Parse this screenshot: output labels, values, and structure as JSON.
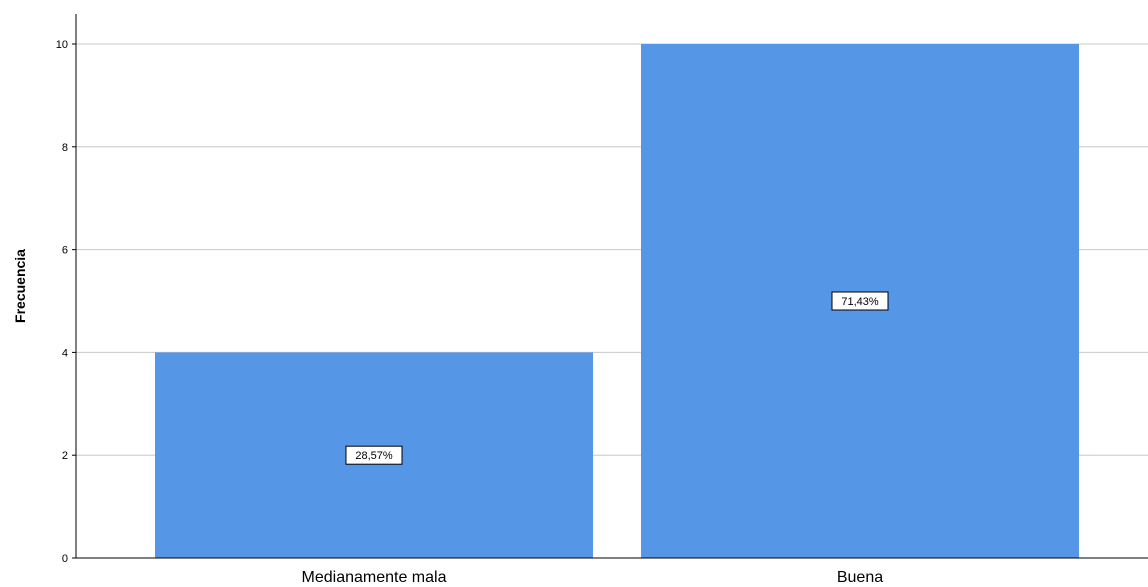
{
  "chart_data": {
    "type": "bar",
    "categories": [
      "Medianamente mala",
      "Buena"
    ],
    "values": [
      4,
      10
    ],
    "data_labels": [
      "28,57%",
      "71,43%"
    ],
    "title": "",
    "xlabel": "",
    "ylabel": "Frecuencia",
    "ylim": [
      0,
      10
    ],
    "yticks": [
      0,
      2,
      4,
      6,
      8,
      10
    ],
    "ytick_labels": [
      "0",
      "2",
      "4",
      "6",
      "8",
      "10"
    ],
    "grid": "horizontal",
    "bar_color": "#5596e6"
  }
}
